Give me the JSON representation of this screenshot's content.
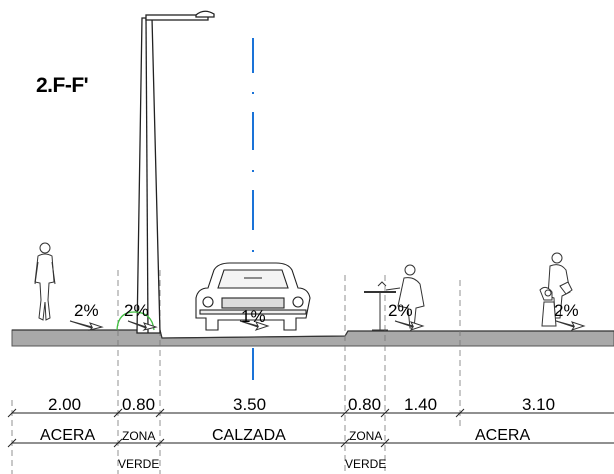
{
  "section_title": "2.F-F'",
  "slopes": [
    "2%",
    "2%",
    "1%",
    "2%",
    "2%"
  ],
  "dimensions": [
    "2.00",
    "0.80",
    "3.50",
    "0.80",
    "1.40",
    "3.10"
  ],
  "zones": {
    "acera_left": "ACERA",
    "zona_left": "ZONA",
    "verde_left": "VERDE",
    "calzada": "CALZADA",
    "zona_right": "ZONA",
    "verde_right": "VERDE",
    "acera_right": "ACERA"
  },
  "colors": {
    "axis_line": "#1a73d8",
    "ground": "#a9a9a9",
    "green_arc": "#3fbf3f",
    "ink": "#000000"
  }
}
